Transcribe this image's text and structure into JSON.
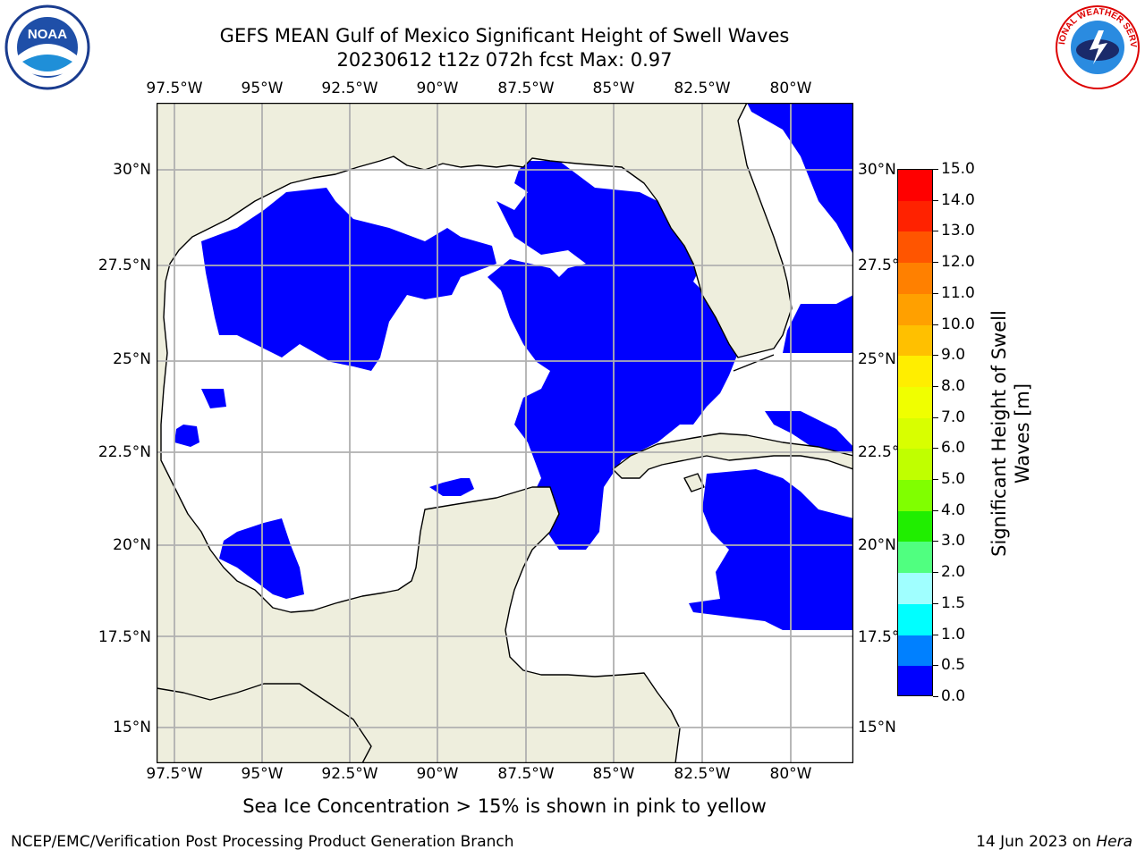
{
  "title": {
    "line1": "GEFS MEAN Gulf of Mexico Significant Height of Swell Waves",
    "line2": "20230612 t12z 072h fcst   Max: 0.97"
  },
  "map": {
    "lon_labels": [
      "97.5°W",
      "95°W",
      "92.5°W",
      "90°W",
      "87.5°W",
      "85°W",
      "82.5°W",
      "80°W"
    ],
    "lat_labels": [
      "30°N",
      "27.5°N",
      "25°N",
      "22.5°N",
      "20°N",
      "17.5°N",
      "15°N"
    ],
    "land_color": "#eeeedd",
    "ocean_color": "#ffffff",
    "swell_color_low": "#0000ff",
    "swell_color_mid": "#0080ff"
  },
  "colorbar": {
    "label": "Significant Height of Swell Waves [m]",
    "ticks": [
      "15.0",
      "14.0",
      "13.0",
      "12.0",
      "11.0",
      "10.0",
      "9.0",
      "8.0",
      "7.0",
      "6.0",
      "5.0",
      "4.0",
      "3.0",
      "2.0",
      "1.5",
      "1.0",
      "0.5",
      "0.0"
    ],
    "colors": [
      "#ff0000",
      "#ff2200",
      "#ff5500",
      "#ff8000",
      "#ffa000",
      "#ffc000",
      "#ffee00",
      "#f0ff00",
      "#d8ff00",
      "#c0ff00",
      "#80ff00",
      "#20ee00",
      "#00dd00",
      "#50ff80",
      "#a0ffff",
      "#40ffff",
      "#00ffff",
      "#0080ff",
      "#0000ff"
    ]
  },
  "ice_note": "Sea Ice Concentration > 15% is shown in pink to yellow",
  "footer": {
    "left": "NCEP/EMC/Verification Post Processing Product Generation Branch",
    "date": "14 Jun 2023 on ",
    "machine": "Hera"
  },
  "logos": {
    "left": "noaa-logo",
    "right": "nws-logo",
    "noaa_text": "NOAA",
    "nws_text": "NATIONAL WEATHER SERVICE"
  }
}
